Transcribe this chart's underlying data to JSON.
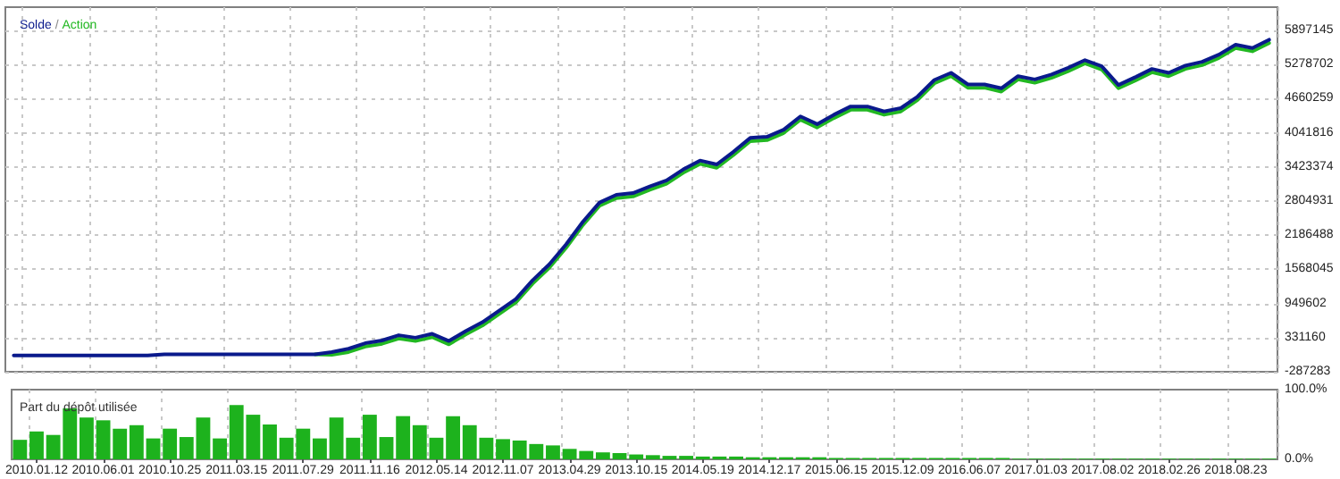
{
  "chart_data": [
    {
      "type": "line",
      "legend": "top left",
      "annotations": [
        "/"
      ],
      "grid": true,
      "marker": "none",
      "line_style": "solid",
      "tick_labels": "y",
      "categories": [
        null,
        "2010.01.12",
        null,
        null,
        null,
        "2010.06.01",
        null,
        null,
        null,
        "2010.10.25",
        null,
        null,
        null,
        "2011.03.15",
        null,
        null,
        null,
        "2011.07.29",
        null,
        null,
        null,
        "2011.11.16",
        null,
        null,
        null,
        "2012.05.14",
        null,
        null,
        null,
        "2012.11.07",
        null,
        null,
        null,
        "2013.04.29",
        null,
        null,
        null,
        "2013.10.15",
        null,
        null,
        null,
        "2014.05.19",
        null,
        null,
        null,
        "2014.12.17",
        null,
        null,
        null,
        "2015.06.15",
        null,
        null,
        null,
        "2015.12.09",
        null,
        null,
        null,
        "2016.06.07",
        null,
        null,
        null,
        "2017.01.03",
        null,
        null,
        null,
        "2017.08.02",
        null,
        null,
        null,
        "2018.02.26",
        null,
        null,
        null,
        "2018.08.23",
        null,
        null
      ],
      "ylim": [
        -287283,
        6320000
      ],
      "yticks": [
        -287283,
        331160,
        949602,
        1568045,
        2186488,
        2804931,
        3423374,
        4041816,
        4660259,
        5278702,
        5897145
      ],
      "series": [
        {
          "name": "Action",
          "color": "#22b822",
          "values": [
            null,
            null,
            null,
            null,
            null,
            null,
            null,
            null,
            null,
            null,
            null,
            null,
            null,
            null,
            null,
            null,
            null,
            null,
            30000,
            20000,
            70000,
            170000,
            220000,
            315000,
            270000,
            340000,
            210000,
            390000,
            550000,
            760000,
            970000,
            1310000,
            1600000,
            1960000,
            2370000,
            2720000,
            2860000,
            2890000,
            3010000,
            3120000,
            3320000,
            3480000,
            3410000,
            3640000,
            3890000,
            3910000,
            4040000,
            4280000,
            4140000,
            4310000,
            4460000,
            4460000,
            4370000,
            4430000,
            4640000,
            4940000,
            5070000,
            4860000,
            4860000,
            4790000,
            5010000,
            4950000,
            5040000,
            5160000,
            5300000,
            5190000,
            4850000,
            4990000,
            5140000,
            5070000,
            5200000,
            5270000,
            5400000,
            5580000,
            5520000,
            5670000
          ]
        },
        {
          "name": "Solde",
          "color": "#0a1a8c",
          "values": [
            10000,
            10000,
            10000,
            10000,
            10000,
            10000,
            10000,
            10000,
            10000,
            30000,
            30000,
            30000,
            30000,
            30000,
            30000,
            30000,
            30000,
            30000,
            30000,
            70000,
            130000,
            230000,
            280000,
            375000,
            330000,
            400000,
            270000,
            450000,
            610000,
            820000,
            1030000,
            1370000,
            1660000,
            2020000,
            2430000,
            2780000,
            2920000,
            2950000,
            3070000,
            3180000,
            3380000,
            3540000,
            3470000,
            3700000,
            3950000,
            3970000,
            4100000,
            4340000,
            4200000,
            4370000,
            4520000,
            4520000,
            4430000,
            4490000,
            4700000,
            5000000,
            5130000,
            4920000,
            4920000,
            4850000,
            5070000,
            5010000,
            5100000,
            5220000,
            5360000,
            5250000,
            4910000,
            5050000,
            5200000,
            5130000,
            5260000,
            5330000,
            5460000,
            5640000,
            5580000,
            5730000
          ]
        }
      ]
    },
    {
      "type": "bar",
      "title": "Part du dépôt utilisée",
      "grid": "x",
      "color": "#1db21d",
      "categories": [
        null,
        "2010.01.12",
        null,
        null,
        null,
        "2010.06.01",
        null,
        null,
        null,
        "2010.10.25",
        null,
        null,
        null,
        "2011.03.15",
        null,
        null,
        null,
        "2011.07.29",
        null,
        null,
        null,
        "2011.11.16",
        null,
        null,
        null,
        "2012.05.14",
        null,
        null,
        null,
        "2012.11.07",
        null,
        null,
        null,
        "2013.04.29",
        null,
        null,
        null,
        "2013.10.15",
        null,
        null,
        null,
        "2014.05.19",
        null,
        null,
        null,
        "2014.12.17",
        null,
        null,
        null,
        "2015.06.15",
        null,
        null,
        null,
        "2015.12.09",
        null,
        null,
        null,
        "2016.06.07",
        null,
        null,
        null,
        "2017.01.03",
        null,
        null,
        null,
        "2017.08.02",
        null,
        null,
        null,
        "2018.02.26",
        null,
        null,
        null,
        "2018.08.23",
        null,
        null
      ],
      "ylim": [
        0,
        100
      ],
      "yticks": [
        {
          "value": 0,
          "label": "0.0%"
        },
        {
          "value": 100,
          "label": "100.0%"
        }
      ],
      "values": [
        28,
        40,
        35,
        73,
        60,
        56,
        44,
        49,
        30,
        44,
        32,
        60,
        30,
        78,
        64,
        50,
        31,
        44,
        30,
        60,
        31,
        64,
        32,
        62,
        49,
        31,
        62,
        49,
        31,
        29,
        27,
        22,
        20,
        15,
        12,
        10,
        9,
        7,
        6,
        5,
        5,
        4,
        4,
        4,
        3,
        3,
        3,
        3,
        3,
        2,
        2,
        2,
        2,
        2,
        2,
        2,
        2,
        2,
        2,
        2,
        1,
        1,
        1,
        1,
        1,
        1,
        1,
        1,
        1,
        1,
        1,
        1,
        1,
        1,
        1,
        1
      ]
    }
  ]
}
